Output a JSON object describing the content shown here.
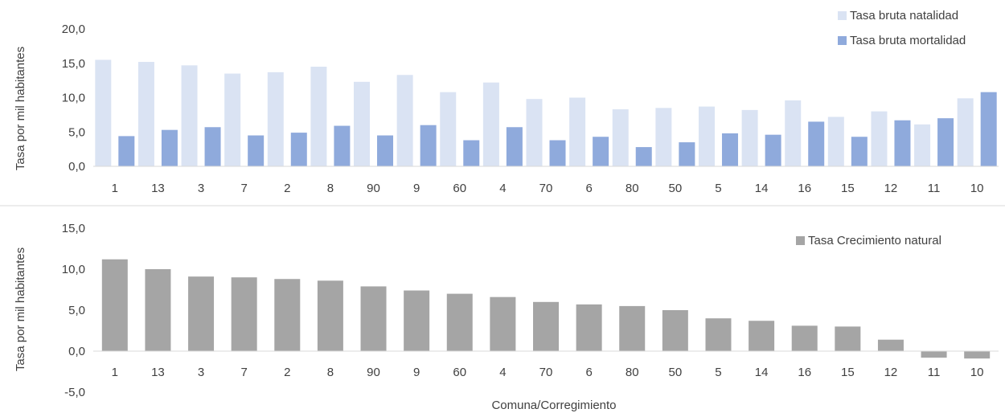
{
  "chart_data": [
    {
      "type": "bar",
      "categories": [
        "1",
        "13",
        "3",
        "7",
        "2",
        "8",
        "90",
        "9",
        "60",
        "4",
        "70",
        "6",
        "80",
        "50",
        "5",
        "14",
        "16",
        "15",
        "12",
        "11",
        "10"
      ],
      "series": [
        {
          "name": "Tasa bruta natalidad",
          "color": "#dae3f3",
          "values": [
            15.5,
            15.2,
            14.7,
            13.5,
            13.7,
            14.5,
            12.3,
            13.3,
            10.8,
            12.2,
            9.8,
            10.0,
            8.3,
            8.5,
            8.7,
            8.2,
            9.6,
            7.2,
            8.0,
            6.1,
            9.9
          ]
        },
        {
          "name": "Tasa bruta mortalidad",
          "color": "#8faadc",
          "values": [
            4.4,
            5.3,
            5.7,
            4.5,
            4.9,
            5.9,
            4.5,
            6.0,
            3.8,
            5.7,
            3.8,
            4.3,
            2.8,
            3.5,
            4.8,
            4.6,
            6.5,
            4.3,
            6.7,
            7.0,
            10.8
          ]
        }
      ],
      "ylabel": "Tasa por mil habitantes",
      "xlabel": "",
      "ylim": [
        0,
        20
      ],
      "yticks": [
        "0,0",
        "5,0",
        "10,0",
        "15,0",
        "20,0"
      ],
      "legend": "top-right",
      "grid": false
    },
    {
      "type": "bar",
      "categories": [
        "1",
        "13",
        "3",
        "7",
        "2",
        "8",
        "90",
        "9",
        "60",
        "4",
        "70",
        "6",
        "80",
        "50",
        "5",
        "14",
        "16",
        "15",
        "12",
        "11",
        "10"
      ],
      "series": [
        {
          "name": "Tasa Crecimiento natural",
          "color": "#a5a5a5",
          "values": [
            11.2,
            10.0,
            9.1,
            9.0,
            8.8,
            8.6,
            7.9,
            7.4,
            7.0,
            6.6,
            6.0,
            5.7,
            5.5,
            5.0,
            4.0,
            3.7,
            3.1,
            3.0,
            1.4,
            -0.8,
            -0.9
          ]
        }
      ],
      "ylabel": "Tasa por mil habitantes",
      "xlabel": "Comuna/Corregimiento",
      "ylim": [
        -5,
        15
      ],
      "yticks": [
        "-5,0",
        "0,0",
        "5,0",
        "10,0",
        "15,0"
      ],
      "legend": "right",
      "grid": false
    }
  ]
}
